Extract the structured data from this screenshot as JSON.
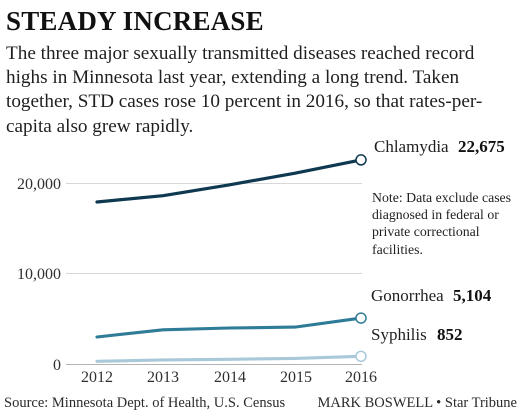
{
  "colors": {
    "chlamydia": "#0f3950",
    "gonorrhea": "#2e7c97",
    "syphilis": "#a9c9d9",
    "gridline": "#d7d7d7",
    "axis": "#b3b3b3",
    "text": "#1f1f1f",
    "marker_fill": "#ffffff"
  },
  "header": {
    "title": "STEADY INCREASE",
    "subtitle": "The three major sexually transmitted diseases reached record highs in Minnesota last year, extending a long trend. Taken together, STD cases rose 10 percent in 2016, so that rates-per-capita also grew rapidly."
  },
  "note": {
    "text": "Note: Data exclude cases diagnosed in federal or private correctional facilities."
  },
  "footer": {
    "source": "Source: Minnesota Dept. of Health, U.S. Census",
    "credit": "MARK BOSWELL • Star Tribune"
  },
  "chart_data": {
    "type": "line",
    "title": "STEADY INCREASE",
    "x": [
      2012,
      2013,
      2014,
      2015,
      2016
    ],
    "ylim": [
      0,
      25000
    ],
    "y_ticks": [
      0,
      10000,
      20000
    ],
    "y_tick_labels": [
      "0",
      "10,000",
      "20,000"
    ],
    "grid": "horizontal",
    "series": [
      {
        "name": "Chlamydia",
        "value_label": "22,675",
        "values": [
          18000,
          18700,
          19900,
          21200,
          22675
        ]
      },
      {
        "name": "Gonorrhea",
        "value_label": "5,104",
        "values": [
          3000,
          3800,
          4000,
          4100,
          5104
        ]
      },
      {
        "name": "Syphilis",
        "value_label": "852",
        "values": [
          300,
          450,
          520,
          620,
          852
        ]
      }
    ]
  }
}
